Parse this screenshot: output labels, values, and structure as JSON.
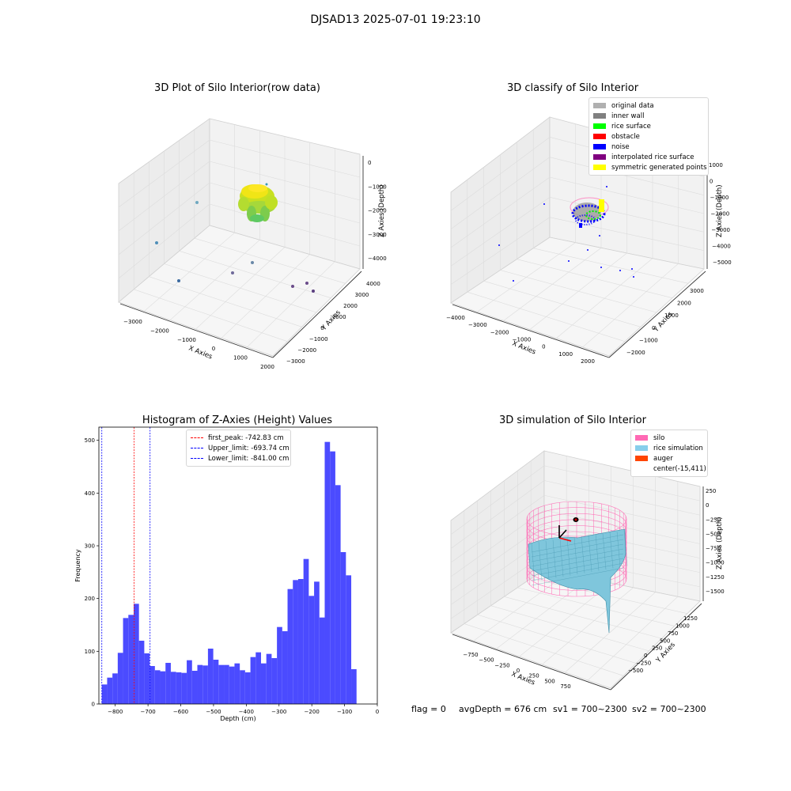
{
  "figure": {
    "suptitle": "DJSAD13 2025-07-01 19:23:10",
    "footer": {
      "flag": "flag = 0",
      "avg_depth": "avgDepth = 676 cm",
      "sv1": "sv1 = 700~2300",
      "sv2": "sv2 = 700~2300"
    }
  },
  "chart_data": [
    {
      "type": "scatter",
      "panel": "top-left",
      "title": "3D Plot of Silo Interior(row data)",
      "xlabel": "X Axies",
      "ylabel": "Y Axies",
      "zlabel": "Z Axies (Depth)",
      "xticks": [
        "−3000",
        "−2000",
        "−1000",
        "0",
        "1000",
        "2000"
      ],
      "yticks": [
        "−3000",
        "−2000",
        "−1000",
        "0",
        "1000",
        "2000",
        "3000",
        "4000"
      ],
      "zticks": [
        "0",
        "−1000",
        "−2000",
        "−3000",
        "−4000"
      ],
      "cluster_note": "dense point cloud near center, depth about -600 to -1800",
      "outliers": [
        {
          "x": -3000,
          "y": -200,
          "z": -3800
        },
        {
          "x": -2600,
          "y": 600,
          "z": -2600
        },
        {
          "x": -2200,
          "y": -1200,
          "z": -4300
        },
        {
          "x": -1000,
          "y": 700,
          "z": -4000
        },
        {
          "x": -300,
          "y": 1000,
          "z": -3800
        },
        {
          "x": 900,
          "y": -600,
          "z": -4300
        },
        {
          "x": 1300,
          "y": 200,
          "z": -4200
        },
        {
          "x": 1400,
          "y": -900,
          "z": -4400
        }
      ],
      "colormap": "viridis"
    },
    {
      "type": "scatter",
      "panel": "top-right",
      "title": "3D classify of Silo Interior",
      "xlabel": "X Axies",
      "ylabel": "Y Axies",
      "zlabel": "Z Axies (Depth)",
      "xticks": [
        "−4000",
        "−3000",
        "−2000",
        "−1000",
        "0",
        "1000",
        "2000"
      ],
      "yticks": [
        "−2000",
        "−1000",
        "0",
        "1000",
        "2000",
        "3000"
      ],
      "zticks": [
        "1000",
        "0",
        "−1000",
        "−2000",
        "−3000",
        "−4000",
        "−5000"
      ],
      "legend": [
        {
          "label": "original data",
          "color": "#b0b0b0"
        },
        {
          "label": "inner wall",
          "color": "#808080"
        },
        {
          "label": "rice surface",
          "color": "#00ff00"
        },
        {
          "label": "obstacle",
          "color": "#ff0000"
        },
        {
          "label": "noise",
          "color": "#0000ff"
        },
        {
          "label": "interpolated rice surface",
          "color": "#800080"
        },
        {
          "label": "symmetric generated points",
          "color": "#ffff00"
        }
      ],
      "legend_position": "top-right"
    },
    {
      "type": "bar",
      "panel": "bottom-left",
      "title": "Histogram of Z-Axies (Height) Values",
      "xlabel": "Depth (cm)",
      "ylabel": "Frequency",
      "xlim": [
        -850,
        0
      ],
      "ylim": [
        0,
        525
      ],
      "xticks": [
        -800,
        -700,
        -600,
        -500,
        -400,
        -300,
        -200,
        -100,
        0
      ],
      "xtick_labels": [
        "−800",
        "−700",
        "−600",
        "−500",
        "−400",
        "−300",
        "−200",
        "−100",
        "0"
      ],
      "yticks": [
        0,
        100,
        200,
        300,
        400,
        500
      ],
      "bin_start": -841,
      "bin_width": 16.2,
      "values": [
        37,
        50,
        58,
        97,
        163,
        169,
        190,
        120,
        96,
        72,
        64,
        62,
        78,
        61,
        60,
        59,
        83,
        63,
        74,
        73,
        105,
        84,
        74,
        74,
        71,
        77,
        64,
        60,
        89,
        98,
        77,
        95,
        87,
        146,
        138,
        218,
        235,
        237,
        275,
        205,
        232,
        164,
        497,
        479,
        415,
        288,
        244,
        66
      ],
      "color": "#4b4bff",
      "vlines": [
        {
          "label": "first_peak: -742.83 cm",
          "value": -742.83,
          "color": "#ff0000"
        },
        {
          "label": "Upper_limit: -693.74 cm",
          "value": -693.74,
          "color": "#0000ff"
        },
        {
          "label": "Lower_limit: -841.00 cm",
          "value": -841.0,
          "color": "#0000ff"
        }
      ],
      "legend_position": "top-center"
    },
    {
      "type": "area",
      "panel": "bottom-right",
      "title": "3D simulation of Silo Interior",
      "xlabel": "X Axies",
      "ylabel": "Y Axies",
      "zlabel": "Z Axies (Depth)",
      "xticks": [
        "−750",
        "−500",
        "−250",
        "0",
        "250",
        "500",
        "750"
      ],
      "yticks": [
        "−500",
        "−250",
        "0",
        "250",
        "500",
        "750",
        "1000",
        "1250"
      ],
      "zticks": [
        "250",
        "0",
        "−250",
        "−500",
        "−750",
        "−1000",
        "−1250",
        "−1500"
      ],
      "legend": [
        {
          "label": "silo",
          "color": "#ff69b4"
        },
        {
          "label": "rice simulation",
          "color": "#87ceeb"
        },
        {
          "label": "auger",
          "color": "#ff4500"
        },
        {
          "label": "center(-15,411)",
          "color": ""
        }
      ],
      "legend_position": "top-right",
      "center": {
        "x": -15,
        "y": 411
      }
    }
  ]
}
